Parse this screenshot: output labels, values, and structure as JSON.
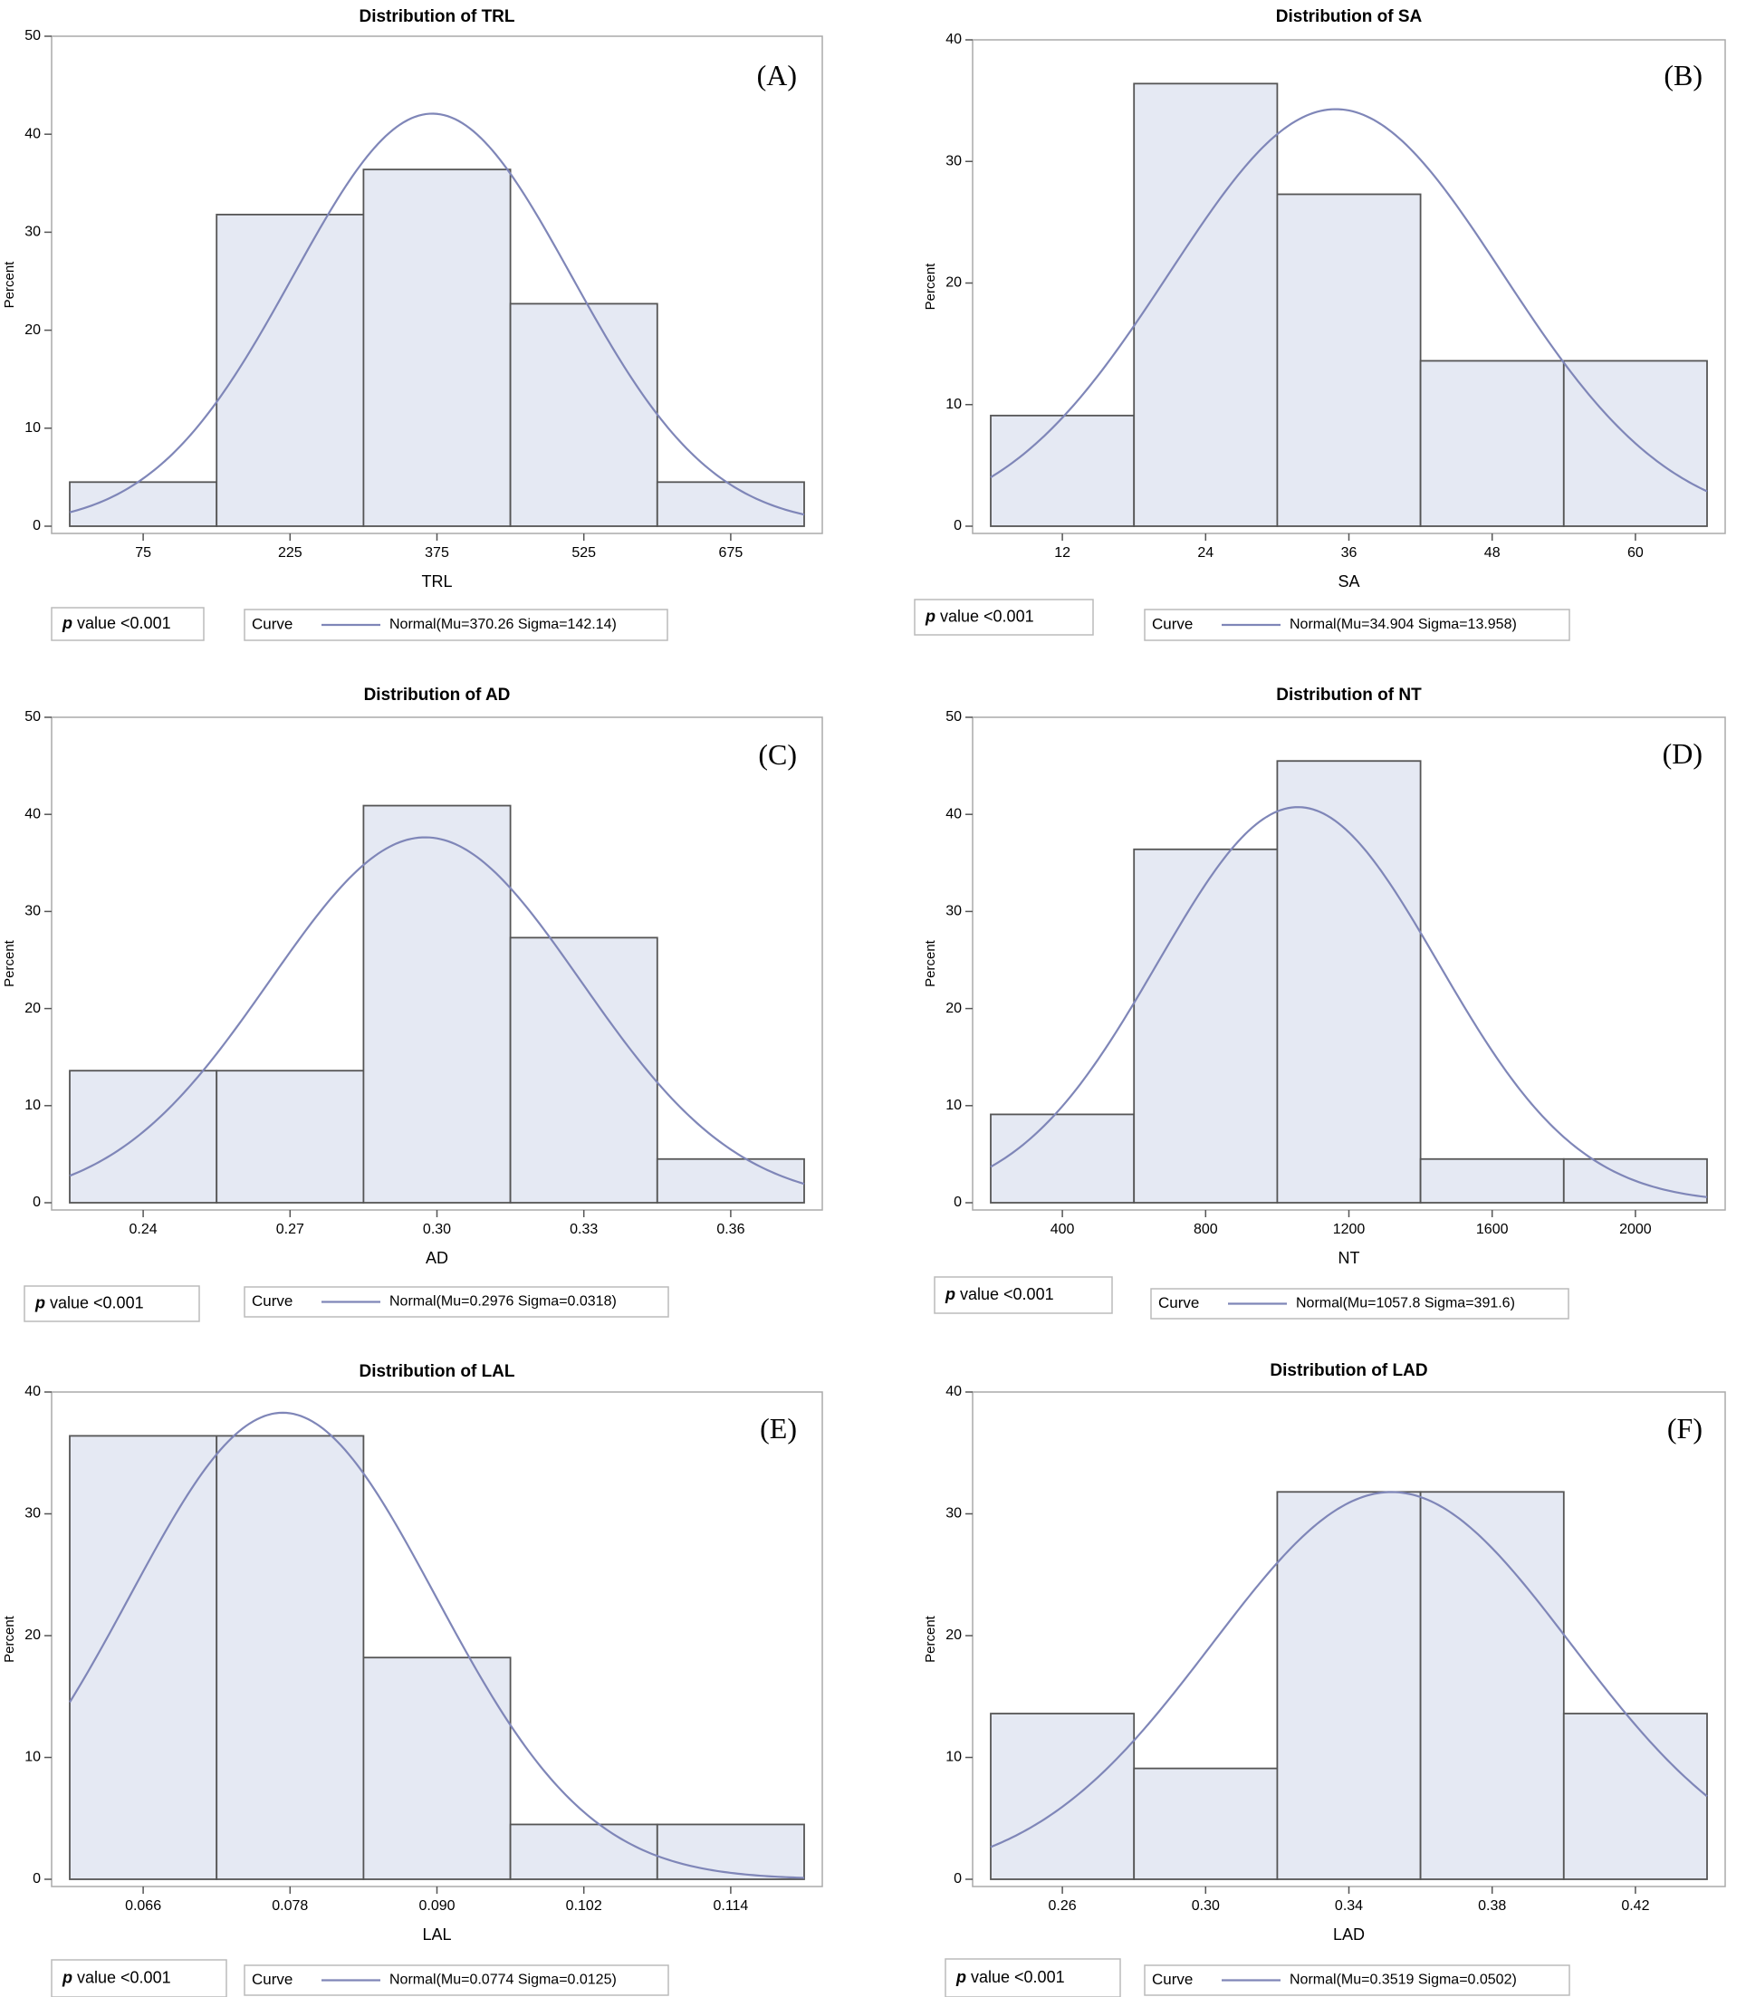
{
  "colors": {
    "bar_fill": "#e5e9f3",
    "bar_stroke": "#555555",
    "curve": "#7f86b8",
    "axis": "#555555",
    "frame": "#aaaaaa",
    "text": "#000000",
    "box_border": "#bbbbbb"
  },
  "chart_data": [
    {
      "type": "bar",
      "panel_label": "(A)",
      "title": "Distribution of TRL",
      "xlabel": "TRL",
      "ylabel": "Percent",
      "bin_width": 150,
      "categories": [
        "75",
        "225",
        "375",
        "525",
        "675"
      ],
      "centers": [
        75,
        225,
        375,
        525,
        675
      ],
      "values": [
        4.5,
        31.8,
        36.4,
        22.7,
        4.5
      ],
      "ylim": [
        0,
        50
      ],
      "yticks": [
        0,
        10,
        20,
        30,
        40,
        50
      ],
      "curve": {
        "type": "normal",
        "mu": 370.26,
        "sigma": 142.14
      },
      "p_value_label": "p",
      "p_value_text": " value <0.001",
      "legend_label": "Curve",
      "legend_text": "Normal(Mu=370.26 Sigma=142.14)"
    },
    {
      "type": "bar",
      "panel_label": "(B)",
      "title": "Distribution of SA",
      "xlabel": "SA",
      "ylabel": "Percent",
      "bin_width": 12,
      "categories": [
        "12",
        "24",
        "36",
        "48",
        "60"
      ],
      "centers": [
        12,
        24,
        36,
        48,
        60
      ],
      "values": [
        9.1,
        36.4,
        27.3,
        13.6,
        13.6
      ],
      "ylim": [
        0,
        40
      ],
      "yticks": [
        0,
        10,
        20,
        30,
        40
      ],
      "curve": {
        "type": "normal",
        "mu": 34.904,
        "sigma": 13.958
      },
      "p_value_label": "p",
      "p_value_text": " value <0.001",
      "legend_label": "Curve",
      "legend_text": "Normal(Mu=34.904 Sigma=13.958)"
    },
    {
      "type": "bar",
      "panel_label": "(C)",
      "title": "Distribution of AD",
      "xlabel": "AD",
      "ylabel": "Percent",
      "bin_width": 0.03,
      "categories": [
        "0.24",
        "0.27",
        "0.30",
        "0.33",
        "0.36"
      ],
      "centers": [
        0.24,
        0.27,
        0.3,
        0.33,
        0.36
      ],
      "values": [
        13.6,
        13.6,
        40.9,
        27.3,
        4.5
      ],
      "ylim": [
        0,
        50
      ],
      "yticks": [
        0,
        10,
        20,
        30,
        40,
        50
      ],
      "curve": {
        "type": "normal",
        "mu": 0.2976,
        "sigma": 0.0318
      },
      "p_value_label": "p",
      "p_value_text": " value <0.001",
      "legend_label": "Curve",
      "legend_text": "Normal(Mu=0.2976 Sigma=0.0318)"
    },
    {
      "type": "bar",
      "panel_label": "(D)",
      "title": "Distribution of NT",
      "xlabel": "NT",
      "ylabel": "Percent",
      "bin_width": 400,
      "categories": [
        "400",
        "800",
        "1200",
        "1600",
        "2000"
      ],
      "centers": [
        400,
        800,
        1200,
        1600,
        2000
      ],
      "values": [
        9.1,
        36.4,
        45.5,
        4.5,
        4.5
      ],
      "ylim": [
        0,
        50
      ],
      "yticks": [
        0,
        10,
        20,
        30,
        40,
        50
      ],
      "curve": {
        "type": "normal",
        "mu": 1057.8,
        "sigma": 391.6
      },
      "p_value_label": "p",
      "p_value_text": " value <0.001",
      "legend_label": "Curve",
      "legend_text": "Normal(Mu=1057.8 Sigma=391.6)"
    },
    {
      "type": "bar",
      "panel_label": "(E)",
      "title": "Distribution of LAL",
      "xlabel": "LAL",
      "ylabel": "Percent",
      "bin_width": 0.012,
      "categories": [
        "0.066",
        "0.078",
        "0.090",
        "0.102",
        "0.114"
      ],
      "centers": [
        0.066,
        0.078,
        0.09,
        0.102,
        0.114
      ],
      "values": [
        36.4,
        36.4,
        18.2,
        4.5,
        4.5
      ],
      "ylim": [
        0,
        40
      ],
      "yticks": [
        0,
        10,
        20,
        30,
        40
      ],
      "curve": {
        "type": "normal",
        "mu": 0.0774,
        "sigma": 0.0125
      },
      "p_value_label": "p",
      "p_value_text": " value <0.001",
      "legend_label": "Curve",
      "legend_text": "Normal(Mu=0.0774 Sigma=0.0125)"
    },
    {
      "type": "bar",
      "panel_label": "(F)",
      "title": "Distribution of LAD",
      "xlabel": "LAD",
      "ylabel": "Percent",
      "bin_width": 0.04,
      "categories": [
        "0.26",
        "0.30",
        "0.34",
        "0.38",
        "0.42"
      ],
      "centers": [
        0.26,
        0.3,
        0.34,
        0.38,
        0.42
      ],
      "values": [
        13.6,
        9.1,
        31.8,
        31.8,
        13.6
      ],
      "ylim": [
        0,
        40
      ],
      "yticks": [
        0,
        10,
        20,
        30,
        40
      ],
      "curve": {
        "type": "normal",
        "mu": 0.3519,
        "sigma": 0.0502
      },
      "p_value_label": "p",
      "p_value_text": " value <0.001",
      "legend_label": "Curve",
      "legend_text": "Normal(Mu=0.3519 Sigma=0.0502)"
    }
  ]
}
